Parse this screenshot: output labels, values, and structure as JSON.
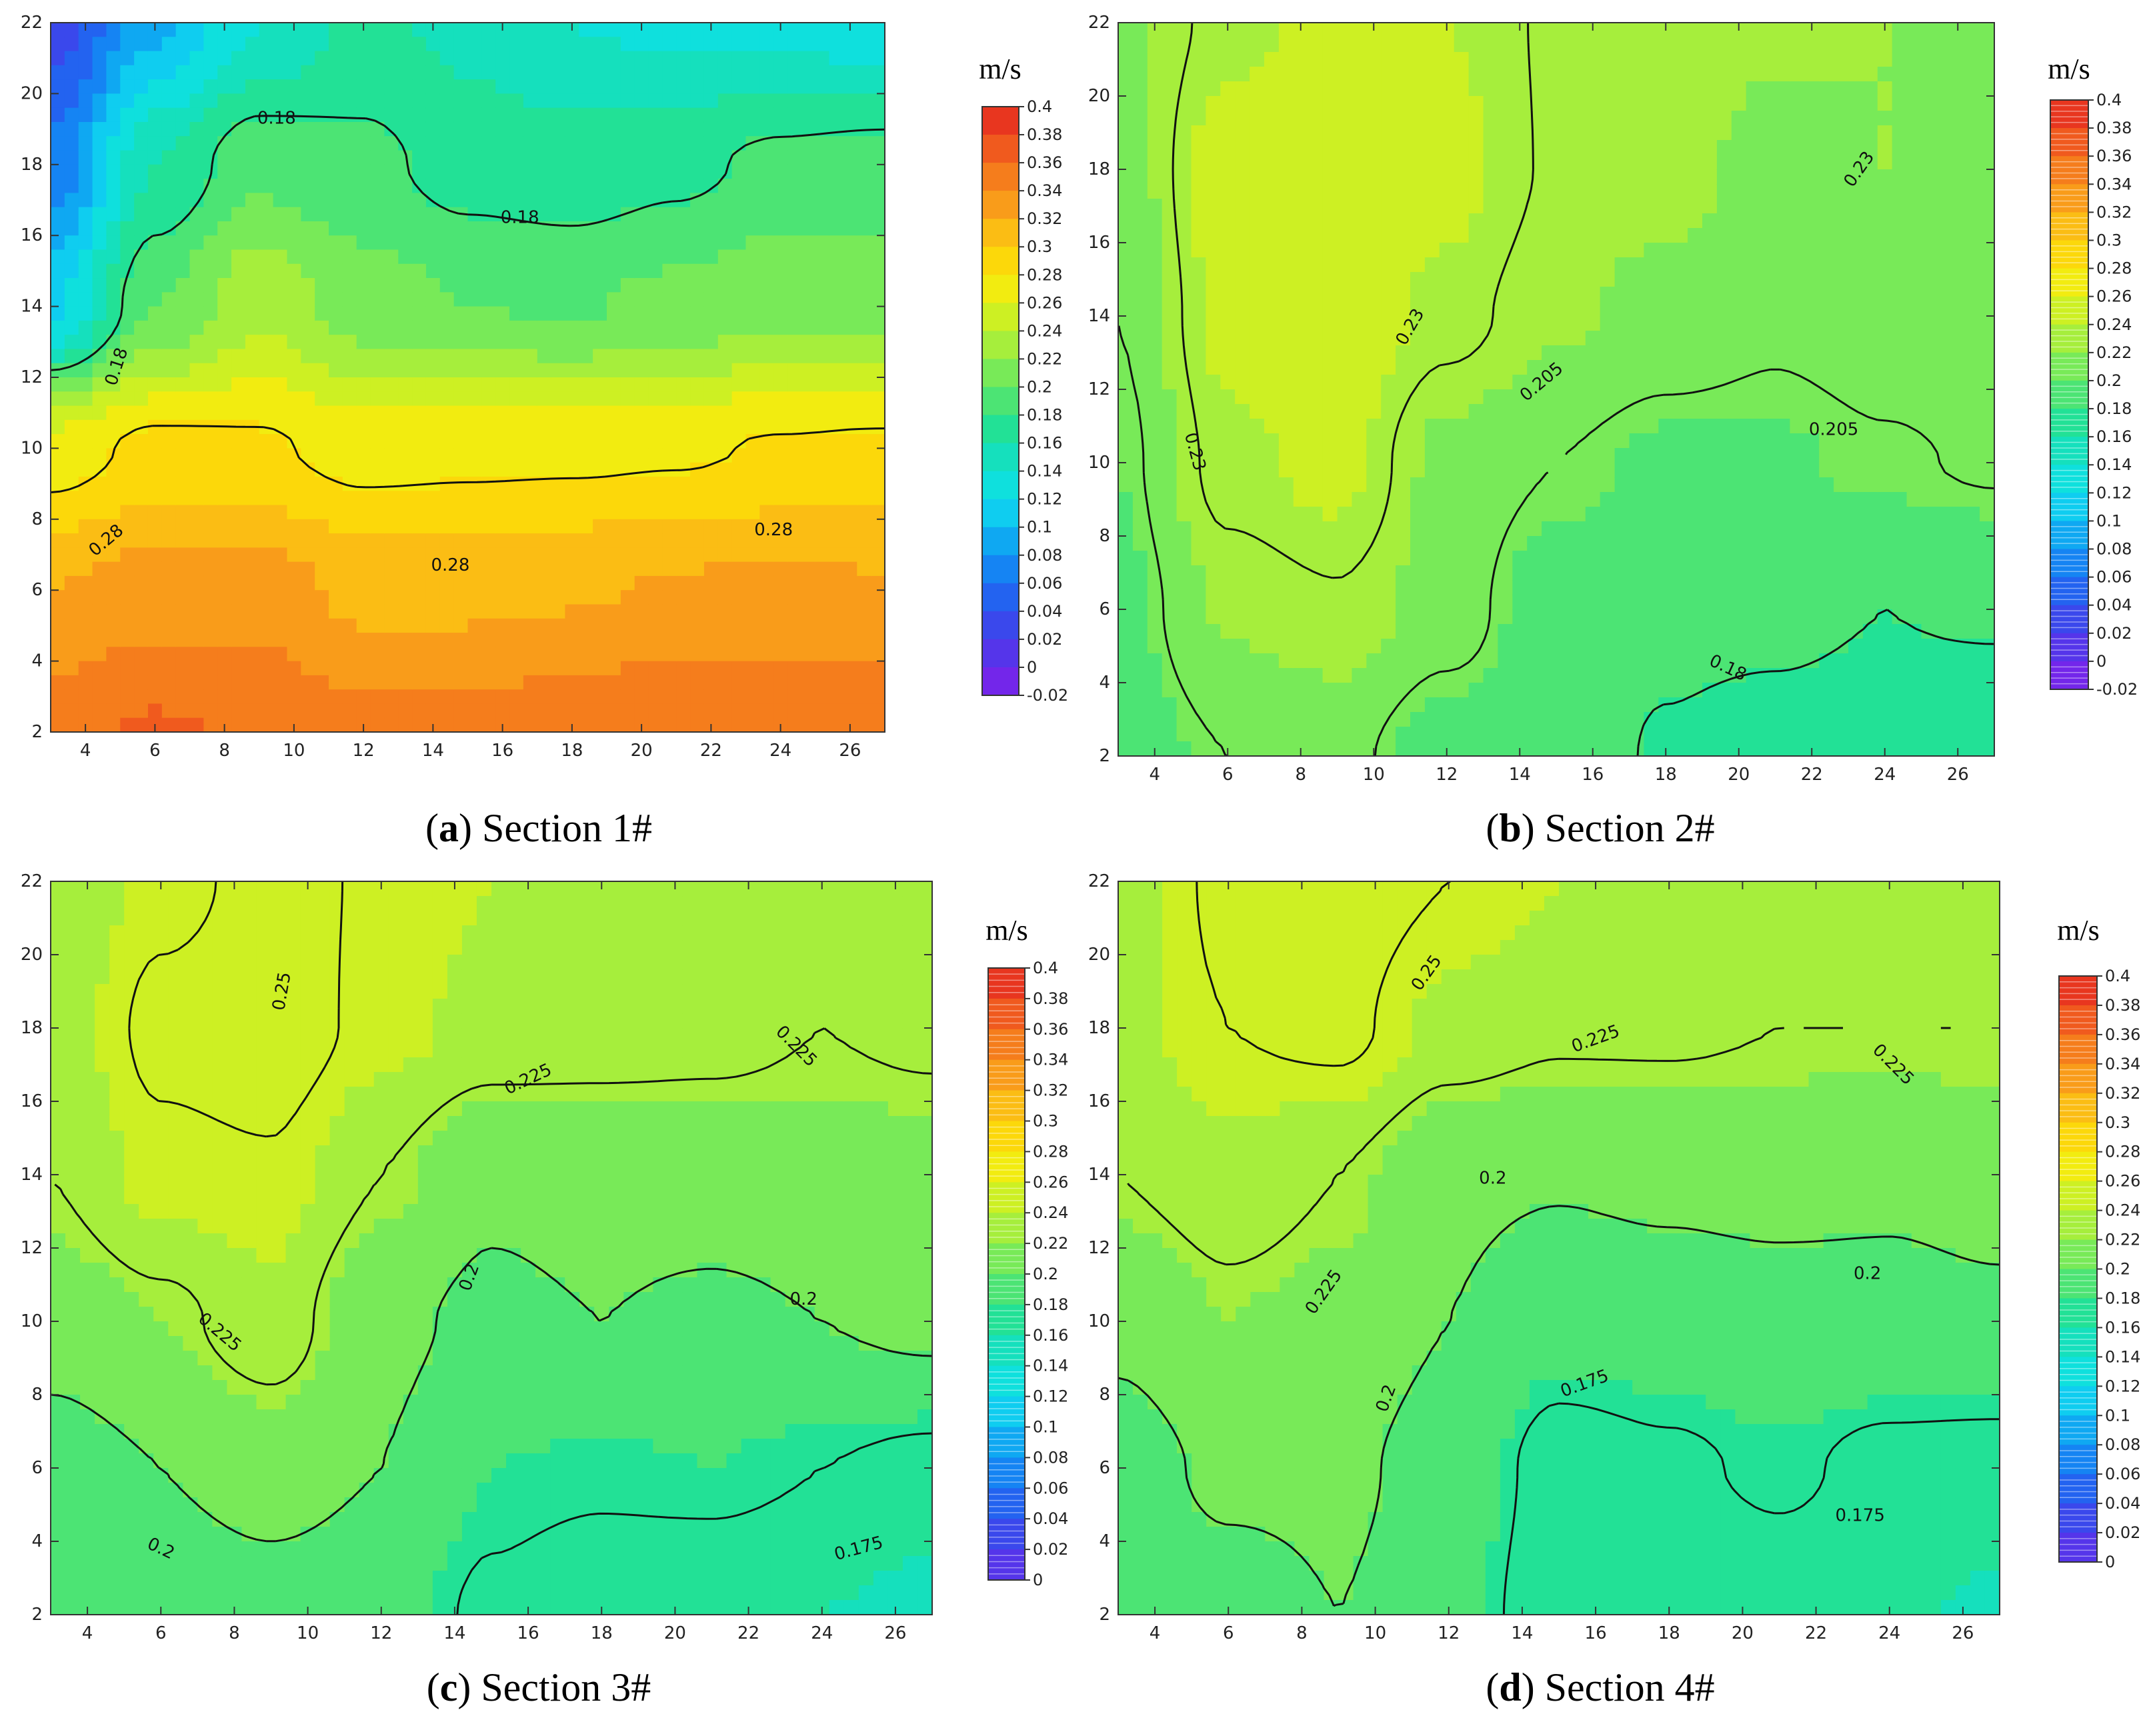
{
  "chart_data": [
    {
      "panel": "a",
      "type": "heatmap",
      "caption_letter": "a",
      "caption_text": " Section 1#",
      "unit": "m/s",
      "x_ticks": [
        4,
        6,
        8,
        10,
        12,
        14,
        16,
        18,
        20,
        22,
        24,
        26
      ],
      "y_ticks": [
        2,
        4,
        6,
        8,
        10,
        12,
        14,
        16,
        18,
        20,
        22
      ],
      "xlim": [
        3,
        27
      ],
      "ylim": [
        2,
        22
      ],
      "colorbar": {
        "levels": [
          "0.4",
          "0.38",
          "0.36",
          "0.34",
          "0.32",
          "0.3",
          "0.28",
          "0.26",
          "0.24",
          "0.22",
          "0.2",
          "0.18",
          "0.16",
          "0.14",
          "0.12",
          "0.1",
          "0.08",
          "0.06",
          "0.04",
          "0.02",
          "0",
          "-0.02"
        ],
        "colors": [
          "#e8361f",
          "#f05a1e",
          "#f57d1c",
          "#f99c1a",
          "#fbbd14",
          "#fcd80a",
          "#f2ec10",
          "#cdf023",
          "#a6ee3c",
          "#78ea58",
          "#4ce474",
          "#22e196",
          "#15e0bd",
          "#0fe0dd",
          "#0fcdf0",
          "#0fa8f2",
          "#1584f3",
          "#2363f0",
          "#3a48ec",
          "#5535ea",
          "#7326ea"
        ],
        "style": "smooth"
      },
      "grid": {
        "x": [
          3,
          6,
          9,
          12,
          15,
          18,
          21,
          24,
          27
        ],
        "y": [
          2,
          6,
          10,
          14,
          18,
          22
        ]
      },
      "values": [
        [
          0.352,
          0.362,
          0.358,
          0.345,
          0.347,
          0.352,
          0.358,
          0.36,
          0.356
        ],
        [
          0.32,
          0.33,
          0.33,
          0.315,
          0.315,
          0.318,
          0.322,
          0.325,
          0.322
        ],
        [
          0.268,
          0.286,
          0.283,
          0.272,
          0.274,
          0.275,
          0.277,
          0.282,
          0.284
        ],
        [
          0.115,
          0.2,
          0.235,
          0.21,
          0.2,
          0.198,
          0.205,
          0.215,
          0.21
        ],
        [
          0.065,
          0.16,
          0.195,
          0.185,
          0.172,
          0.168,
          0.175,
          0.185,
          0.19
        ],
        [
          0.03,
          0.095,
          0.14,
          0.165,
          0.155,
          0.14,
          0.135,
          0.135,
          0.125
        ]
      ],
      "contour_levels": [
        0.18,
        0.28
      ],
      "contour_labels": [
        {
          "text": "0.18",
          "x": 9.5,
          "y": 19.3,
          "rot": 0
        },
        {
          "text": "0.18",
          "x": 16.5,
          "y": 16.5,
          "rot": 0
        },
        {
          "text": "0.18",
          "x": 4.9,
          "y": 12.3,
          "rot": -72
        },
        {
          "text": "0.28",
          "x": 4.6,
          "y": 7.4,
          "rot": -40
        },
        {
          "text": "0.28",
          "x": 14.5,
          "y": 6.7,
          "rot": 0
        },
        {
          "text": "0.28",
          "x": 23.8,
          "y": 7.7,
          "rot": 0
        }
      ]
    },
    {
      "panel": "b",
      "type": "heatmap",
      "caption_letter": "b",
      "caption_text": " Section 2#",
      "unit": "m/s",
      "x_ticks": [
        4,
        6,
        8,
        10,
        12,
        14,
        16,
        18,
        20,
        22,
        24,
        26
      ],
      "y_ticks": [
        2,
        4,
        6,
        8,
        10,
        12,
        14,
        16,
        18,
        20,
        22
      ],
      "xlim": [
        3,
        27
      ],
      "ylim": [
        2,
        22
      ],
      "colorbar": {
        "levels": [
          "0.4",
          "0.38",
          "0.36",
          "0.34",
          "0.32",
          "0.3",
          "0.28",
          "0.26",
          "0.24",
          "0.22",
          "0.2",
          "0.18",
          "0.16",
          "0.14",
          "0.12",
          "0.1",
          "0.08",
          "0.06",
          "0.04",
          "0.02",
          "0",
          "-0.02"
        ],
        "colors": [
          "#e8361f",
          "#f05a1e",
          "#f57d1c",
          "#f99c1a",
          "#fbbd14",
          "#fcd80a",
          "#f2ec10",
          "#cdf023",
          "#a6ee3c",
          "#78ea58",
          "#4ce474",
          "#22e196",
          "#15e0bd",
          "#0fe0dd",
          "#0fcdf0",
          "#0fa8f2",
          "#1584f3",
          "#2363f0",
          "#3a48ec",
          "#5535ea",
          "#7326ea"
        ],
        "style": "striped"
      },
      "grid": {
        "x": [
          3,
          6,
          9,
          12,
          15,
          18,
          21,
          24,
          27
        ],
        "y": [
          2,
          6,
          10,
          14,
          18,
          22
        ]
      },
      "values": [
        [
          0.19,
          0.205,
          0.21,
          0.192,
          0.19,
          0.178,
          0.172,
          0.17,
          0.162
        ],
        [
          0.195,
          0.222,
          0.228,
          0.213,
          0.19,
          0.185,
          0.185,
          0.18,
          0.183
        ],
        [
          0.2,
          0.236,
          0.245,
          0.215,
          0.205,
          0.197,
          0.198,
          0.203,
          0.207
        ],
        [
          0.205,
          0.245,
          0.253,
          0.235,
          0.222,
          0.215,
          0.208,
          0.213,
          0.215
        ],
        [
          0.21,
          0.25,
          0.26,
          0.245,
          0.228,
          0.225,
          0.215,
          0.22,
          0.22
        ],
        [
          0.215,
          0.235,
          0.245,
          0.24,
          0.228,
          0.227,
          0.222,
          0.22,
          0.215
        ]
      ],
      "contour_levels": [
        0.18,
        0.205,
        0.23
      ],
      "contour_labels": [
        {
          "text": "0.23",
          "x": 23.3,
          "y": 18.0,
          "rot": -55
        },
        {
          "text": "0.23",
          "x": 11,
          "y": 13.7,
          "rot": -60
        },
        {
          "text": "0.23",
          "x": 5.1,
          "y": 10.3,
          "rot": 75
        },
        {
          "text": "0.205",
          "x": 14.6,
          "y": 12.2,
          "rot": -40
        },
        {
          "text": "0.205",
          "x": 22.6,
          "y": 10.9,
          "rot": 0
        },
        {
          "text": "0.18",
          "x": 19.7,
          "y": 4.4,
          "rot": 25
        }
      ]
    },
    {
      "panel": "c",
      "type": "heatmap",
      "caption_letter": "c",
      "caption_text": " Section 3#",
      "unit": "m/s",
      "x_ticks": [
        4,
        6,
        8,
        10,
        12,
        14,
        16,
        18,
        20,
        22,
        24,
        26
      ],
      "y_ticks": [
        2,
        4,
        6,
        8,
        10,
        12,
        14,
        16,
        18,
        20,
        22
      ],
      "xlim": [
        3,
        27
      ],
      "ylim": [
        2,
        22
      ],
      "colorbar": {
        "levels": [
          "0.4",
          "0.38",
          "0.36",
          "0.34",
          "0.32",
          "0.3",
          "0.28",
          "0.26",
          "0.24",
          "0.22",
          "0.2",
          "0.18",
          "0.16",
          "0.14",
          "0.12",
          "0.1",
          "0.08",
          "0.06",
          "0.04",
          "0.02",
          "0"
        ],
        "colors": [
          "#e8361f",
          "#f05a1e",
          "#f57d1c",
          "#f99c1a",
          "#fbbd14",
          "#fcd80a",
          "#f2ec10",
          "#cdf023",
          "#a6ee3c",
          "#78ea58",
          "#4ce474",
          "#22e196",
          "#15e0bd",
          "#0fe0dd",
          "#0fcdf0",
          "#0fa8f2",
          "#1584f3",
          "#2363f0",
          "#3a48ec",
          "#5535ea"
        ],
        "style": "striped"
      },
      "grid": {
        "x": [
          3,
          6,
          9,
          12,
          15,
          18,
          21,
          24,
          27
        ],
        "y": [
          2,
          6,
          10,
          14,
          18,
          22
        ]
      },
      "values": [
        [
          0.18,
          0.185,
          0.19,
          0.185,
          0.172,
          0.165,
          0.162,
          0.16,
          0.155
        ],
        [
          0.19,
          0.2,
          0.21,
          0.2,
          0.18,
          0.178,
          0.18,
          0.175,
          0.17
        ],
        [
          0.21,
          0.22,
          0.235,
          0.205,
          0.195,
          0.2,
          0.195,
          0.2,
          0.205
        ],
        [
          0.225,
          0.245,
          0.248,
          0.225,
          0.205,
          0.21,
          0.212,
          0.215,
          0.215
        ],
        [
          0.23,
          0.255,
          0.26,
          0.245,
          0.235,
          0.232,
          0.23,
          0.225,
          0.228
        ],
        [
          0.225,
          0.245,
          0.255,
          0.248,
          0.24,
          0.24,
          0.235,
          0.232,
          0.228
        ]
      ],
      "contour_levels": [
        0.175,
        0.2,
        0.225,
        0.25
      ],
      "contour_labels": [
        {
          "text": "0.25",
          "x": 9.3,
          "y": 19.0,
          "rot": -80
        },
        {
          "text": "0.225",
          "x": 23.3,
          "y": 17.5,
          "rot": 45
        },
        {
          "text": "0.225",
          "x": 16,
          "y": 16.6,
          "rot": -25
        },
        {
          "text": "0.225",
          "x": 7.6,
          "y": 9.7,
          "rot": 40
        },
        {
          "text": "0.2",
          "x": 14.4,
          "y": 11.2,
          "rot": -70
        },
        {
          "text": "0.2",
          "x": 23.5,
          "y": 10.6,
          "rot": 0
        },
        {
          "text": "0.2",
          "x": 6,
          "y": 3.8,
          "rot": 25
        },
        {
          "text": "0.175",
          "x": 25,
          "y": 3.8,
          "rot": -15
        }
      ]
    },
    {
      "panel": "d",
      "type": "heatmap",
      "caption_letter": "d",
      "caption_text": " Section 4#",
      "unit": "m/s",
      "x_ticks": [
        4,
        6,
        8,
        10,
        12,
        14,
        16,
        18,
        20,
        22,
        24,
        26
      ],
      "y_ticks": [
        2,
        4,
        6,
        8,
        10,
        12,
        14,
        16,
        18,
        20,
        22
      ],
      "xlim": [
        3,
        27
      ],
      "ylim": [
        2,
        22
      ],
      "colorbar": {
        "levels": [
          "0.4",
          "0.38",
          "0.36",
          "0.34",
          "0.32",
          "0.3",
          "0.28",
          "0.26",
          "0.24",
          "0.22",
          "0.2",
          "0.18",
          "0.16",
          "0.14",
          "0.12",
          "0.1",
          "0.08",
          "0.06",
          "0.04",
          "0.02",
          "0"
        ],
        "colors": [
          "#e8361f",
          "#f05a1e",
          "#f57d1c",
          "#f99c1a",
          "#fbbd14",
          "#fcd80a",
          "#f2ec10",
          "#cdf023",
          "#a6ee3c",
          "#78ea58",
          "#4ce474",
          "#22e196",
          "#15e0bd",
          "#0fe0dd",
          "#0fcdf0",
          "#0fa8f2",
          "#1584f3",
          "#2363f0",
          "#3a48ec",
          "#5535ea"
        ],
        "style": "striped"
      },
      "grid": {
        "x": [
          3,
          6,
          9,
          12,
          15,
          18,
          21,
          24,
          27
        ],
        "y": [
          2,
          6,
          10,
          14,
          18,
          22
        ]
      },
      "values": [
        [
          0.18,
          0.19,
          0.2,
          0.185,
          0.165,
          0.16,
          0.165,
          0.162,
          0.158
        ],
        [
          0.19,
          0.205,
          0.205,
          0.19,
          0.168,
          0.172,
          0.178,
          0.17,
          0.168
        ],
        [
          0.205,
          0.22,
          0.215,
          0.2,
          0.185,
          0.188,
          0.19,
          0.192,
          0.195
        ],
        [
          0.225,
          0.235,
          0.225,
          0.205,
          0.202,
          0.205,
          0.208,
          0.205,
          0.21
        ],
        [
          0.235,
          0.25,
          0.255,
          0.235,
          0.228,
          0.228,
          0.225,
          0.225,
          0.225
        ],
        [
          0.23,
          0.255,
          0.26,
          0.25,
          0.24,
          0.24,
          0.235,
          0.232,
          0.23
        ]
      ],
      "contour_levels": [
        0.175,
        0.2,
        0.225,
        0.25
      ],
      "contour_labels": [
        {
          "text": "0.25",
          "x": 11.4,
          "y": 19.5,
          "rot": -55
        },
        {
          "text": "0.225",
          "x": 16,
          "y": 17.7,
          "rot": -20
        },
        {
          "text": "0.225",
          "x": 24.1,
          "y": 17.0,
          "rot": 45
        },
        {
          "text": "0.225",
          "x": 8.6,
          "y": 10.8,
          "rot": -55
        },
        {
          "text": "0.2",
          "x": 13.2,
          "y": 13.9,
          "rot": 0
        },
        {
          "text": "0.2",
          "x": 23.4,
          "y": 11.3,
          "rot": 0
        },
        {
          "text": "0.2",
          "x": 10.3,
          "y": 7.9,
          "rot": -70
        },
        {
          "text": "0.175",
          "x": 15.7,
          "y": 8.3,
          "rot": -20
        },
        {
          "text": "0.175",
          "x": 23.2,
          "y": 4.7,
          "rot": 0
        }
      ]
    }
  ]
}
